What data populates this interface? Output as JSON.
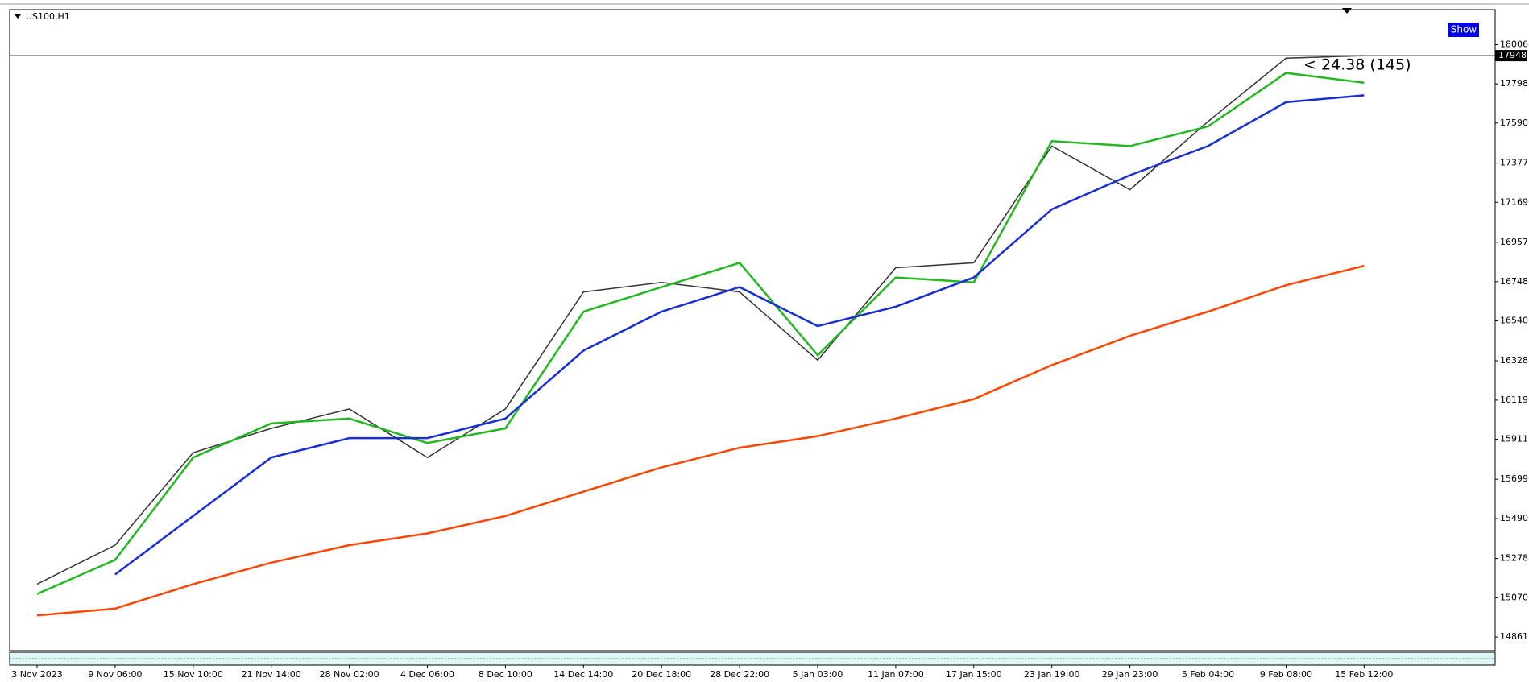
{
  "chart_data": {
    "type": "line",
    "title": "US100,H1",
    "button": "Show",
    "annotation": "< 24.38 (145)",
    "last_price": 17948,
    "categories": [
      "3 Nov 2023",
      "9 Nov 06:00",
      "15 Nov 10:00",
      "21 Nov 14:00",
      "28 Nov 02:00",
      "4 Dec 06:00",
      "8 Dec 10:00",
      "14 Dec 14:00",
      "20 Dec 18:00",
      "28 Dec 22:00",
      "5 Jan 03:00",
      "11 Jan 07:00",
      "17 Jan 15:00",
      "23 Jan 19:00",
      "29 Jan 23:00",
      "5 Feb 04:00",
      "9 Feb 08:00",
      "15 Feb 12:00"
    ],
    "series": [
      {
        "color": "#333333",
        "values": [
          15142,
          15349,
          15840,
          15969,
          16072,
          15814,
          16072,
          16693,
          16744,
          16693,
          16331,
          16822,
          16848,
          17468,
          17236,
          17598,
          17934,
          17948
        ]
      },
      {
        "color": "#22b822",
        "values": [
          15090,
          15271,
          15814,
          15995,
          16021,
          15891,
          15969,
          16589,
          16719,
          16848,
          16357,
          16770,
          16744,
          17494,
          17468,
          17572,
          17856,
          17804
        ]
      },
      {
        "color": "#1a2ed6",
        "values": [
          null,
          15193,
          15504,
          15814,
          15917,
          15917,
          16021,
          16382,
          16589,
          16719,
          16512,
          16615,
          16770,
          17132,
          17313,
          17468,
          17701,
          17737
        ]
      },
      {
        "color": "#ff4500",
        "values": [
          14976,
          15012,
          15142,
          15256,
          15349,
          15411,
          15504,
          15633,
          15762,
          15866,
          15928,
          16021,
          16124,
          16305,
          16460,
          16589,
          16729,
          16832
        ]
      }
    ],
    "ylim": [
      14789,
      18192
    ],
    "yticks": [
      18006,
      17798,
      17590,
      17377,
      17169,
      16957,
      16748,
      16540,
      16328,
      16119,
      15911,
      15699,
      15490,
      15278,
      15070,
      14861
    ]
  }
}
